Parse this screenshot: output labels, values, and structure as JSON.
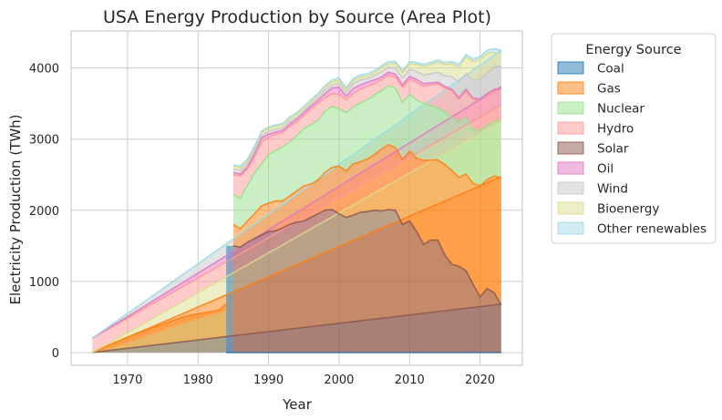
{
  "chart_data": {
    "type": "area",
    "title": "USA Energy Production by Source (Area Plot)",
    "xlabel": "Year",
    "ylabel": "Electricity Production (TWh)",
    "xlim": [
      1962,
      2026
    ],
    "ylim": [
      -180,
      4520
    ],
    "xticks": [
      1970,
      1980,
      1990,
      2000,
      2010,
      2020
    ],
    "yticks": [
      0,
      1000,
      2000,
      3000,
      4000
    ],
    "grid": true,
    "legend": {
      "title": "Energy Source",
      "placement": "outside-right"
    },
    "series": [
      {
        "name": "Coal",
        "color": "#1f77b4",
        "key": "coal"
      },
      {
        "name": "Gas",
        "color": "#ff7f0e",
        "key": "gas"
      },
      {
        "name": "Nuclear",
        "color": "#98df8a",
        "key": "nuclear"
      },
      {
        "name": "Hydro",
        "color": "#ff9896",
        "key": "hydro"
      },
      {
        "name": "Solar",
        "color": "#8c564b",
        "key": "solar"
      },
      {
        "name": "Oil",
        "color": "#e377c2",
        "key": "oil"
      },
      {
        "name": "Wind",
        "color": "#c7c7c7",
        "key": "wind"
      },
      {
        "name": "Bioenergy",
        "color": "#dbdb8d",
        "key": "bio"
      },
      {
        "name": "Other renewables",
        "color": "#9edae5",
        "key": "other"
      }
    ],
    "diagonals": {
      "x": [
        1965,
        2023
      ],
      "solar": [
        0,
        680
      ],
      "gas": [
        0,
        2470
      ],
      "bio": [
        0,
        3250
      ],
      "hydro": [
        200,
        3480
      ],
      "oil": [
        200,
        3740
      ],
      "wind": [
        200,
        4180
      ],
      "other": [
        200,
        4250
      ]
    },
    "early": {
      "x": [
        1965,
        1967,
        1969,
        1971,
        1973,
        1975,
        1977,
        1979,
        1981,
        1983,
        1984
      ],
      "nuclear": [
        0,
        40,
        100,
        170,
        240,
        310,
        380,
        440,
        500,
        560,
        590
      ],
      "gas": [
        0,
        90,
        180,
        260,
        330,
        400,
        470,
        530,
        560,
        600,
        680
      ]
    },
    "stack": {
      "x": [
        1985,
        1986,
        1987,
        1988,
        1989,
        1990,
        1991,
        1992,
        1993,
        1994,
        1995,
        1996,
        1997,
        1998,
        1999,
        2000,
        2001,
        2002,
        2003,
        2004,
        2005,
        2006,
        2007,
        2008,
        2009,
        2010,
        2011,
        2012,
        2013,
        2014,
        2015,
        2016,
        2017,
        2018,
        2019,
        2020,
        2021,
        2022,
        2023
      ],
      "coal": [
        1500,
        1480,
        1550,
        1600,
        1650,
        1700,
        1710,
        1750,
        1800,
        1830,
        1850,
        1900,
        1950,
        2000,
        2010,
        1950,
        1900,
        1930,
        1970,
        1980,
        2000,
        1990,
        2010,
        2000,
        1800,
        1850,
        1700,
        1520,
        1580,
        1580,
        1370,
        1240,
        1210,
        1150,
        960,
        780,
        900,
        840,
        670
      ],
      "gas": [
        1800,
        1740,
        1850,
        1950,
        2060,
        2100,
        2130,
        2130,
        2200,
        2270,
        2340,
        2370,
        2420,
        2530,
        2600,
        2620,
        2550,
        2650,
        2680,
        2720,
        2780,
        2860,
        2920,
        2880,
        2710,
        2830,
        2730,
        2700,
        2700,
        2710,
        2640,
        2560,
        2460,
        2510,
        2380,
        2340,
        2430,
        2480,
        2460
      ],
      "nuclear": [
        2220,
        2170,
        2350,
        2520,
        2650,
        2780,
        2840,
        2890,
        2960,
        3050,
        3150,
        3200,
        3260,
        3390,
        3460,
        3430,
        3370,
        3450,
        3510,
        3550,
        3620,
        3680,
        3750,
        3720,
        3510,
        3630,
        3550,
        3500,
        3470,
        3440,
        3380,
        3310,
        3240,
        3300,
        3140,
        3110,
        3200,
        3240,
        3280
      ],
      "hydro": [
        2500,
        2480,
        2580,
        2750,
        2950,
        3030,
        3070,
        3090,
        3180,
        3240,
        3330,
        3420,
        3500,
        3580,
        3640,
        3630,
        3550,
        3640,
        3700,
        3740,
        3780,
        3830,
        3900,
        3870,
        3730,
        3840,
        3800,
        3740,
        3760,
        3780,
        3720,
        3680,
        3560,
        3680,
        3560,
        3540,
        3620,
        3680,
        3690
      ],
      "oil": [
        2530,
        2510,
        2610,
        2790,
        3020,
        3070,
        3100,
        3120,
        3210,
        3280,
        3370,
        3460,
        3540,
        3640,
        3720,
        3730,
        3600,
        3710,
        3760,
        3800,
        3830,
        3870,
        3940,
        3910,
        3760,
        3880,
        3840,
        3780,
        3790,
        3800,
        3740,
        3700,
        3580,
        3700,
        3580,
        3560,
        3640,
        3700,
        3710
      ],
      "wind": [
        2580,
        2560,
        2660,
        2840,
        3050,
        3110,
        3140,
        3160,
        3250,
        3310,
        3400,
        3490,
        3580,
        3690,
        3760,
        3790,
        3650,
        3780,
        3830,
        3850,
        3890,
        3950,
        4010,
        4000,
        3860,
        3980,
        3950,
        3900,
        3920,
        3940,
        3890,
        3880,
        3800,
        3920,
        3830,
        3840,
        3930,
        4010,
        4030
      ],
      "bio": [
        2620,
        2600,
        2700,
        2880,
        3090,
        3150,
        3180,
        3200,
        3290,
        3350,
        3440,
        3530,
        3620,
        3730,
        3800,
        3830,
        3690,
        3820,
        3870,
        3890,
        3930,
        4000,
        4060,
        4060,
        3930,
        4060,
        4050,
        4020,
        4050,
        4080,
        4050,
        4060,
        4010,
        4150,
        4090,
        4120,
        4200,
        4220,
        4200
      ],
      "other": [
        2640,
        2620,
        2720,
        2900,
        3110,
        3170,
        3200,
        3220,
        3310,
        3370,
        3460,
        3550,
        3640,
        3750,
        3830,
        3860,
        3720,
        3850,
        3900,
        3920,
        3960,
        4030,
        4090,
        4090,
        3960,
        4090,
        4080,
        4050,
        4080,
        4110,
        4080,
        4090,
        4050,
        4190,
        4130,
        4160,
        4250,
        4270,
        4250
      ]
    }
  }
}
